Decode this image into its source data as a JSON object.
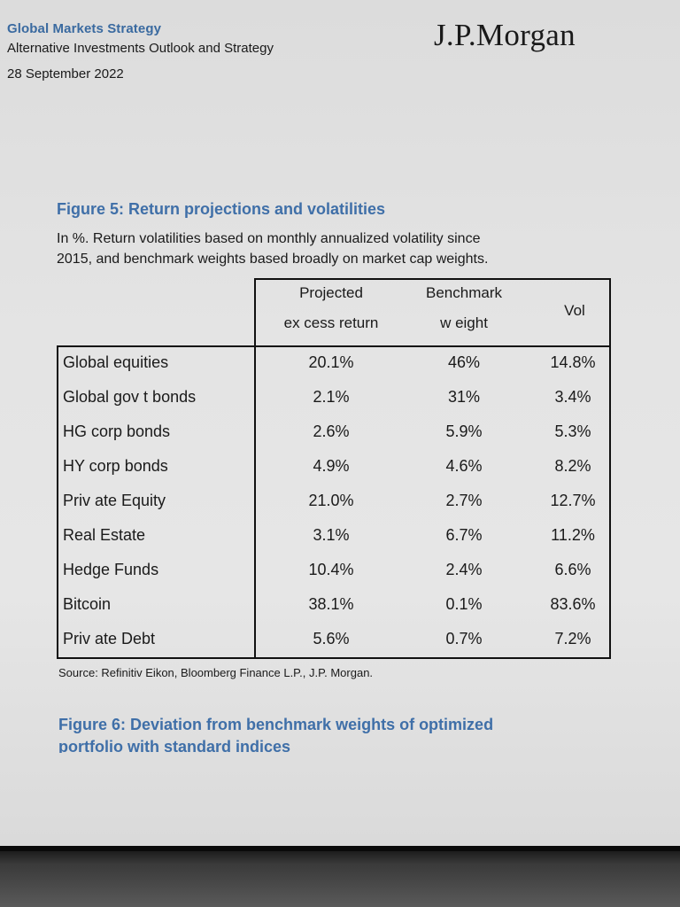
{
  "header": {
    "series": "Global Markets Strategy",
    "title": "Alternative Investments Outlook and Strategy",
    "date": "28 September 2022",
    "logo": "J.P.Morgan"
  },
  "figure5": {
    "title": "Figure 5: Return projections and volatilities",
    "subtitle_line1": "In %. Return volatilities based on monthly annualized volatility since",
    "subtitle_line2": "2015, and benchmark weights based broadly on market cap weights.",
    "columns": {
      "c1_line1": "Projected",
      "c1_line2": "ex cess return",
      "c2_line1": "Benchmark",
      "c2_line2": "w eight",
      "c3": "Vol"
    },
    "rows": [
      {
        "label": "Global equities",
        "return": "20.1%",
        "weight": "46%",
        "vol": "14.8%"
      },
      {
        "label": "Global gov t bonds",
        "return": "2.1%",
        "weight": "31%",
        "vol": "3.4%"
      },
      {
        "label": "HG corp bonds",
        "return": "2.6%",
        "weight": "5.9%",
        "vol": "5.3%"
      },
      {
        "label": "HY corp bonds",
        "return": "4.9%",
        "weight": "4.6%",
        "vol": "8.2%"
      },
      {
        "label": "Priv ate Equity",
        "return": "21.0%",
        "weight": "2.7%",
        "vol": "12.7%"
      },
      {
        "label": "Real Estate",
        "return": "3.1%",
        "weight": "6.7%",
        "vol": "11.2%"
      },
      {
        "label": "Hedge Funds",
        "return": "10.4%",
        "weight": "2.4%",
        "vol": "6.6%"
      },
      {
        "label": "Bitcoin",
        "return": "38.1%",
        "weight": "0.1%",
        "vol": "83.6%"
      },
      {
        "label": "Priv ate Debt",
        "return": "5.6%",
        "weight": "0.7%",
        "vol": "7.2%"
      }
    ],
    "source": "Source: Refinitiv Eikon, Bloomberg Finance L.P., J.P. Morgan."
  },
  "figure6": {
    "title_line1": "Figure 6: Deviation from benchmark weights of optimized",
    "title_line2": "portfolio with standard indices"
  },
  "colors": {
    "accent_blue": "#3f6fa8",
    "text": "#1a1a1a",
    "page_bg": "#e2e2e2"
  }
}
